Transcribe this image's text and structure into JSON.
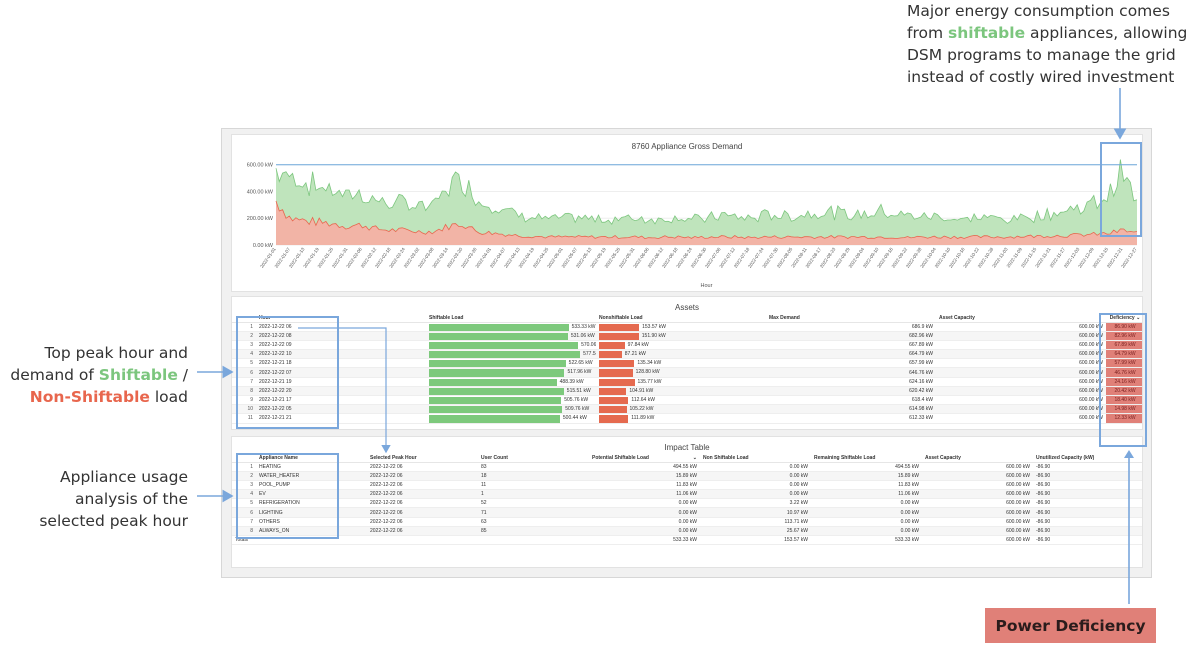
{
  "callouts": {
    "top": {
      "line1": "Major energy consumption comes",
      "line2_pre": "from ",
      "line2_hl": "shiftable",
      "line2_post": " appliances, allowing",
      "line3": "DSM programs to manage the grid",
      "line4": "instead of costly wired investment"
    },
    "left1": {
      "line1": "Top peak hour and",
      "line2_pre": "demand of ",
      "line2_hl": "Shiftable",
      "line2_post": " /",
      "line3_hl": "Non-Shiftable",
      "line3_post": " load"
    },
    "left2": {
      "line1": "Appliance usage",
      "line2": "analysis of the",
      "line3": "selected peak hour"
    },
    "power_deficiency": "Power Deficiency"
  },
  "colors": {
    "shiftable": "#7cc67e",
    "nonshiftable": "#e8664d",
    "deficiency": "#e08078",
    "annotation": "#7aa7dc"
  },
  "chart_data": {
    "type": "area",
    "title": "8760 Appliance Gross Demand",
    "xlabel": "Hour",
    "ylabel": "",
    "yticks": [
      "0.00 kW",
      "200.00 kW",
      "400.00 kW",
      "600.00 kW"
    ],
    "ylim": [
      0,
      650
    ],
    "capacity_line": 600,
    "x_tick_labels": [
      "2022-01-01",
      "2022-01-07",
      "2022-01-13",
      "2022-01-19",
      "2022-01-25",
      "2022-01-31",
      "2022-02-06",
      "2022-02-12",
      "2022-02-18",
      "2022-02-24",
      "2022-03-02",
      "2022-03-08",
      "2022-03-14",
      "2022-03-20",
      "2022-03-26",
      "2022-04-01",
      "2022-04-07",
      "2022-04-13",
      "2022-04-19",
      "2022-04-25",
      "2022-05-01",
      "2022-05-07",
      "2022-05-13",
      "2022-05-19",
      "2022-05-25",
      "2022-05-31",
      "2022-06-06",
      "2022-06-12",
      "2022-06-18",
      "2022-06-24",
      "2022-06-30",
      "2022-07-06",
      "2022-07-12",
      "2022-07-18",
      "2022-07-24",
      "2022-07-30",
      "2022-08-05",
      "2022-08-11",
      "2022-08-17",
      "2022-08-23",
      "2022-08-29",
      "2022-09-04",
      "2022-09-10",
      "2022-09-16",
      "2022-09-22",
      "2022-09-28",
      "2022-10-04",
      "2022-10-10",
      "2022-10-16",
      "2022-10-22",
      "2022-10-28",
      "2022-11-03",
      "2022-11-09",
      "2022-11-15",
      "2022-11-21",
      "2022-11-27",
      "2022-12-03",
      "2022-12-09",
      "2022-12-15",
      "2022-12-21",
      "2022-12-27"
    ],
    "series": [
      {
        "name": "Shiftable",
        "color": "#7cc67e",
        "values": [
          250,
          330,
          300,
          280,
          260,
          250,
          240,
          220,
          210,
          215,
          200,
          205,
          320,
          360,
          250,
          230,
          190,
          160,
          150,
          140,
          145,
          150,
          140,
          135,
          150,
          145,
          150,
          140,
          160,
          140,
          150,
          170,
          160,
          150,
          170,
          175,
          160,
          185,
          200,
          190,
          170,
          180,
          210,
          195,
          170,
          160,
          165,
          150,
          140,
          150,
          150,
          140,
          150,
          160,
          180,
          200,
          210,
          240,
          300,
          460,
          220
        ]
      },
      {
        "name": "Non-Shiftable",
        "color": "#e8664d",
        "values": [
          330,
          200,
          180,
          170,
          160,
          140,
          150,
          120,
          110,
          110,
          100,
          100,
          140,
          160,
          100,
          90,
          80,
          70,
          65,
          60,
          60,
          60,
          60,
          60,
          60,
          60,
          55,
          60,
          60,
          55,
          60,
          60,
          60,
          55,
          60,
          60,
          60,
          60,
          60,
          60,
          60,
          60,
          60,
          60,
          55,
          60,
          60,
          60,
          60,
          60,
          60,
          60,
          65,
          65,
          70,
          70,
          75,
          80,
          85,
          110,
          90
        ]
      }
    ]
  },
  "assets": {
    "title": "Assets",
    "columns": [
      "",
      "Hour",
      "Shiftable Load",
      "Nonshiftable Load",
      "Max Demand",
      "Asset Capacity",
      "Deficiency"
    ],
    "sort_indicator": "⌄",
    "rows": [
      {
        "idx": "1",
        "hour": "2022-12-22 06",
        "shift": "533.33 kW",
        "shift_v": 533.33,
        "non": "153.57 kW",
        "non_v": 153.57,
        "max": "686.9 kW",
        "cap": "600.00 kW",
        "def": "86.90 kW"
      },
      {
        "idx": "2",
        "hour": "2022-12-22 08",
        "shift": "531.06 kW",
        "shift_v": 531.06,
        "non": "151.90 kW",
        "non_v": 151.9,
        "max": "682.96 kW",
        "cap": "600.00 kW",
        "def": "82.96 kW"
      },
      {
        "idx": "3",
        "hour": "2022-12-22 09",
        "shift": "570.06 kW",
        "shift_v": 570.06,
        "non": "97.84 kW",
        "non_v": 97.84,
        "max": "667.89 kW",
        "cap": "600.00 kW",
        "def": "67.89 kW"
      },
      {
        "idx": "4",
        "hour": "2022-12-22 10",
        "shift": "577.58 kW",
        "shift_v": 577.58,
        "non": "87.21 kW",
        "non_v": 87.21,
        "max": "664.79 kW",
        "cap": "600.00 kW",
        "def": "64.79 kW"
      },
      {
        "idx": "5",
        "hour": "2022-12-21 18",
        "shift": "522.65 kW",
        "shift_v": 522.65,
        "non": "135.34 kW",
        "non_v": 135.34,
        "max": "657.99 kW",
        "cap": "600.00 kW",
        "def": "57.99 kW"
      },
      {
        "idx": "6",
        "hour": "2022-12-22 07",
        "shift": "517.96 kW",
        "shift_v": 517.96,
        "non": "128.80 kW",
        "non_v": 128.8,
        "max": "646.76 kW",
        "cap": "600.00 kW",
        "def": "46.76 kW"
      },
      {
        "idx": "7",
        "hour": "2022-12-21 19",
        "shift": "488.39 kW",
        "shift_v": 488.39,
        "non": "135.77 kW",
        "non_v": 135.77,
        "max": "624.16 kW",
        "cap": "600.00 kW",
        "def": "24.16 kW"
      },
      {
        "idx": "8",
        "hour": "2022-12-22 20",
        "shift": "515.51 kW",
        "shift_v": 515.51,
        "non": "104.91 kW",
        "non_v": 104.91,
        "max": "620.42 kW",
        "cap": "600.00 kW",
        "def": "20.42 kW"
      },
      {
        "idx": "9",
        "hour": "2022-12-21 17",
        "shift": "505.76 kW",
        "shift_v": 505.76,
        "non": "112.64 kW",
        "non_v": 112.64,
        "max": "618.4 kW",
        "cap": "600.00 kW",
        "def": "18.40 kW"
      },
      {
        "idx": "10",
        "hour": "2022-12-22 05",
        "shift": "509.76 kW",
        "shift_v": 509.76,
        "non": "105.22 kW",
        "non_v": 105.22,
        "max": "614.98 kW",
        "cap": "600.00 kW",
        "def": "14.98 kW"
      },
      {
        "idx": "11",
        "hour": "2022-12-21 21",
        "shift": "500.44 kW",
        "shift_v": 500.44,
        "non": "111.89 kW",
        "non_v": 111.89,
        "max": "612.33 kW",
        "cap": "600.00 kW",
        "def": "12.33 kW"
      }
    ]
  },
  "impact": {
    "title": "Impact Table",
    "columns": [
      "",
      "Appliance Name",
      "Selected Peak Hour",
      "User Count",
      "Potential Shiftable Load",
      "Non Shiftable Load",
      "Remaining Shiftable Load",
      "Asset Capacity",
      "Unutilized Capacity (kW)"
    ],
    "sort_indicator": "⌄",
    "rows": [
      {
        "idx": "1",
        "name": "HEATING",
        "hour": "2022-12-22 06",
        "users": "83",
        "pot": "494.55 kW",
        "non": "0.00 kW",
        "rem": "494.55 kW",
        "cap": "600.00 kW",
        "unused": "-86.90"
      },
      {
        "idx": "2",
        "name": "WATER_HEATER",
        "hour": "2022-12-22 06",
        "users": "18",
        "pot": "15.89 kW",
        "non": "0.00 kW",
        "rem": "15.89 kW",
        "cap": "600.00 kW",
        "unused": "-86.90"
      },
      {
        "idx": "3",
        "name": "POOL_PUMP",
        "hour": "2022-12-22 06",
        "users": "11",
        "pot": "11.83 kW",
        "non": "0.00 kW",
        "rem": "11.83 kW",
        "cap": "600.00 kW",
        "unused": "-86.90"
      },
      {
        "idx": "4",
        "name": "EV",
        "hour": "2022-12-22 06",
        "users": "1",
        "pot": "11.06 kW",
        "non": "0.00 kW",
        "rem": "11.06 kW",
        "cap": "600.00 kW",
        "unused": "-86.90"
      },
      {
        "idx": "5",
        "name": "REFRIGERATION",
        "hour": "2022-12-22 06",
        "users": "52",
        "pot": "0.00 kW",
        "non": "3.22 kW",
        "rem": "0.00 kW",
        "cap": "600.00 kW",
        "unused": "-86.90"
      },
      {
        "idx": "6",
        "name": "LIGHTING",
        "hour": "2022-12-22 06",
        "users": "71",
        "pot": "0.00 kW",
        "non": "10.97 kW",
        "rem": "0.00 kW",
        "cap": "600.00 kW",
        "unused": "-86.90"
      },
      {
        "idx": "7",
        "name": "OTHERS",
        "hour": "2022-12-22 06",
        "users": "63",
        "pot": "0.00 kW",
        "non": "113.71 kW",
        "rem": "0.00 kW",
        "cap": "600.00 kW",
        "unused": "-86.90"
      },
      {
        "idx": "8",
        "name": "ALWAYS_ON",
        "hour": "2022-12-22 06",
        "users": "85",
        "pot": "0.00 kW",
        "non": "25.67 kW",
        "rem": "0.00 kW",
        "cap": "600.00 kW",
        "unused": "-86.90"
      }
    ],
    "totals": {
      "label": "Totals",
      "pot": "533.33 kW",
      "non": "153.57 kW",
      "rem": "533.33 kW",
      "cap": "600.00 kW",
      "unused": "-86.90"
    }
  }
}
